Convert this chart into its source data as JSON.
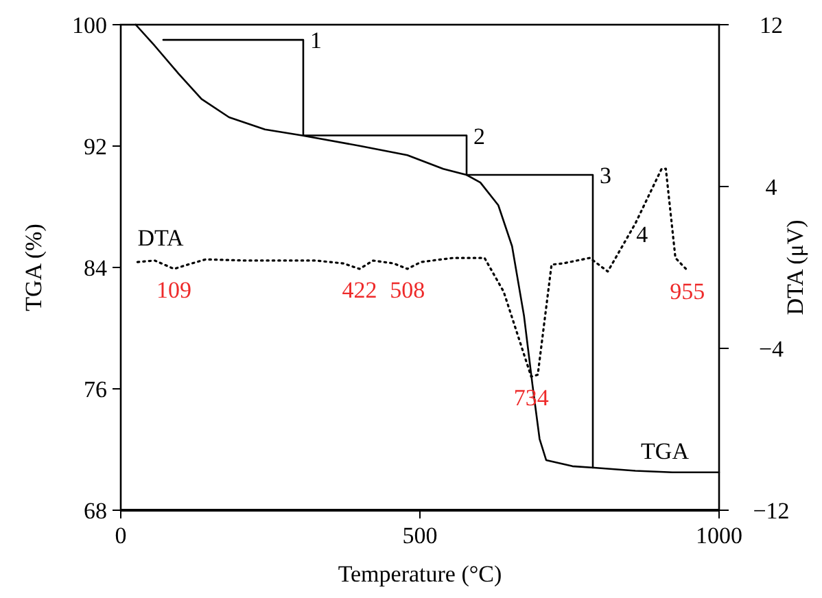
{
  "chart_data": {
    "type": "line",
    "xlabel": "Temperature (°C)",
    "ylabel": "TGA (%)",
    "y2label": "DTA (μV)",
    "xlim": [
      0,
      1000
    ],
    "xticks": [
      0,
      500,
      1000
    ],
    "ylim": [
      68,
      100
    ],
    "yticks": [
      68,
      76,
      84,
      92,
      100
    ],
    "y2lim": [
      -12,
      12
    ],
    "y2ticks": [
      {
        "value": -12,
        "label": "−12"
      },
      {
        "value": -4,
        "label": "−4"
      },
      4,
      12
    ],
    "grid": false,
    "marker": "none",
    "series": [
      {
        "name": "TGA",
        "color": "#000000",
        "line_style": "solid",
        "x": [
          25,
          57,
          96,
          135,
          181,
          241,
          303,
          401,
          479,
          539,
          578,
          601,
          631,
          654,
          674,
          688,
          700,
          711,
          755,
          791,
          860,
          922,
          1000
        ],
        "values": [
          100,
          98.6,
          96.8,
          95.1,
          93.9,
          93.1,
          92.7,
          92.0,
          91.4,
          90.5,
          90.1,
          89.6,
          88.1,
          85.4,
          80.8,
          76.3,
          72.7,
          71.3,
          70.9,
          70.8,
          70.6,
          70.5,
          70.5
        ]
      },
      {
        "color": "#000000",
        "line_style": "solid",
        "x": [
          71,
          305,
          305,
          578,
          578,
          789,
          789
        ],
        "values": [
          99.0,
          99.0,
          92.7,
          92.7,
          90.1,
          90.1,
          70.8
        ]
      },
      {
        "name": "DTA",
        "color": "#000000",
        "line_style": "dotted",
        "axis": "y2",
        "x": [
          28,
          57,
          89,
          112,
          142,
          211,
          326,
          372,
          399,
          422,
          456,
          479,
          502,
          555,
          608,
          640,
          686,
          697,
          720,
          739,
          784,
          814,
          860,
          904,
          911,
          927,
          947
        ],
        "values": [
          0.27,
          0.34,
          -0.07,
          0.14,
          0.4,
          0.34,
          0.34,
          0.2,
          -0.07,
          0.34,
          0.2,
          -0.07,
          0.27,
          0.47,
          0.47,
          -1.2,
          -5.4,
          -5.3,
          0.14,
          0.2,
          0.47,
          -0.2,
          2.17,
          4.88,
          4.88,
          0.47,
          -0.14
        ]
      }
    ],
    "annotations": [
      {
        "text": "1",
        "x": 305,
        "y": 99.0
      },
      {
        "text": "2",
        "x": 578,
        "y": 92.7
      },
      {
        "text": "3",
        "x": 789,
        "y": 90.1
      },
      {
        "text": "4",
        "x": 850,
        "y": 86.21
      },
      {
        "text": "109",
        "x": 89,
        "y": 83.91
      },
      {
        "text": "422",
        "x": 399,
        "y": 83.91
      },
      {
        "text": "508",
        "x": 479,
        "y": 83.91
      },
      {
        "text": "734",
        "x": 686,
        "y": 76.8
      },
      {
        "text": "955",
        "x": 947,
        "y": 83.81
      }
    ]
  }
}
